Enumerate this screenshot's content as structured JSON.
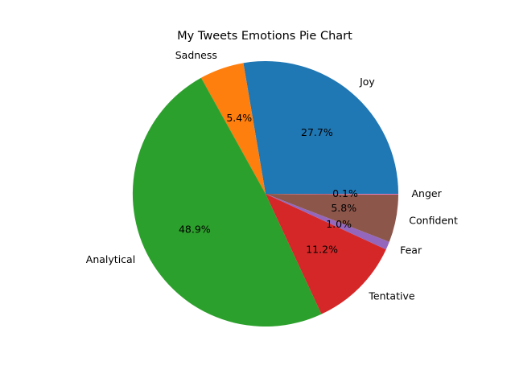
{
  "chart_data": {
    "type": "pie",
    "title": "My Tweets Emotions Pie Chart",
    "labels": [
      "Joy",
      "Sadness",
      "Analytical",
      "Tentative",
      "Fear",
      "Confident",
      "Anger"
    ],
    "values": [
      27.7,
      5.4,
      48.9,
      11.2,
      1.0,
      5.8,
      0.1
    ],
    "percent_labels": [
      "27.7%",
      "5.4%",
      "48.9%",
      "11.2%",
      "1.0%",
      "5.8%",
      "0.1%"
    ],
    "colors": [
      "#1f77b4",
      "#ff7f0e",
      "#2ca02c",
      "#d62728",
      "#9467bd",
      "#8c564b",
      "#e377c2"
    ],
    "start_angle_deg": 0,
    "direction": "counterclockwise",
    "legend": "none"
  }
}
